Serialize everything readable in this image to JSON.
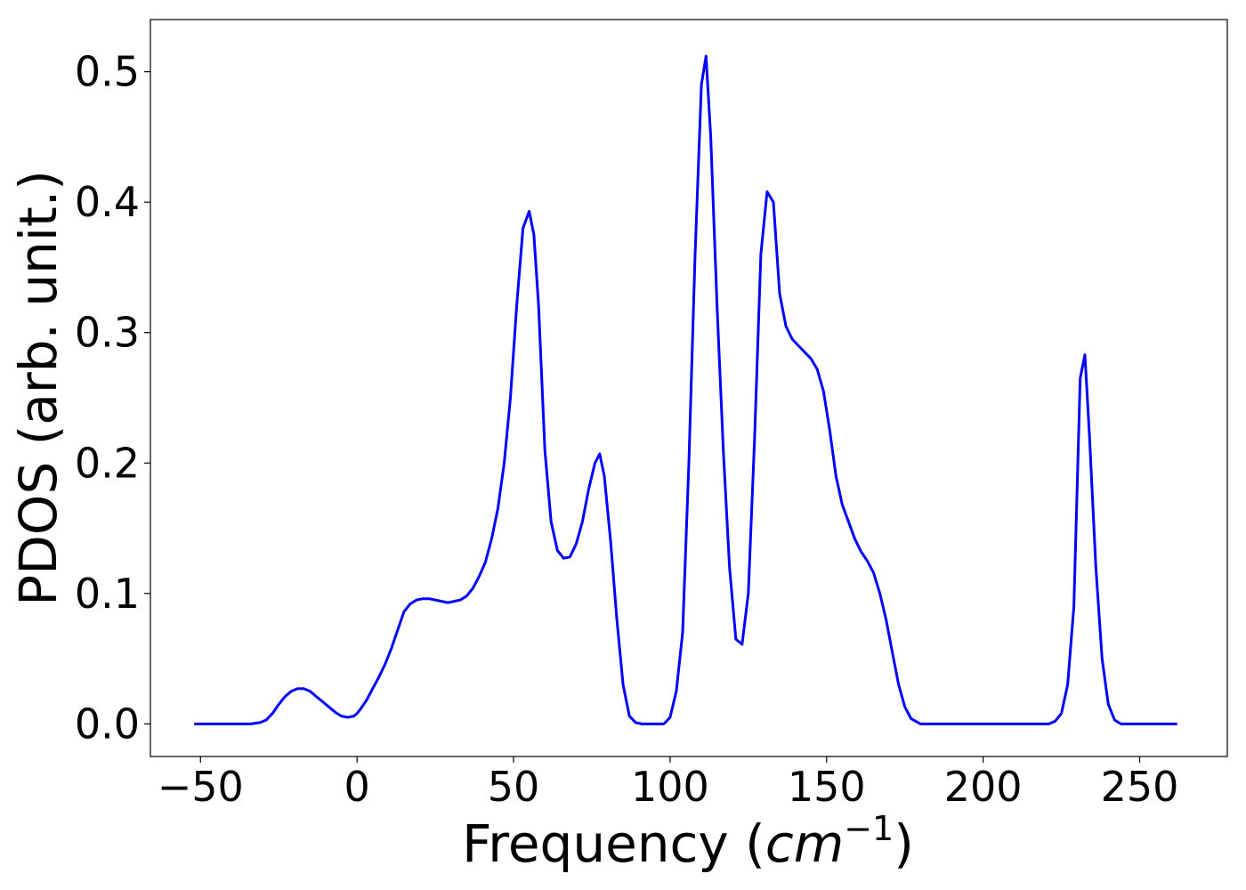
{
  "chart_data": {
    "type": "line",
    "xlabel": {
      "prefix": "Frequency (",
      "italic": "cm",
      "sup": "−1",
      "suffix": ")"
    },
    "ylabel": "PDOS (arb. unit.)",
    "xlim": [
      -66,
      278
    ],
    "ylim": [
      -0.025,
      0.54
    ],
    "xticks": [
      -50,
      0,
      50,
      100,
      150,
      200,
      250
    ],
    "xtick_labels": [
      "−50",
      "0",
      "50",
      "100",
      "150",
      "200",
      "250"
    ],
    "yticks": [
      0.0,
      0.1,
      0.2,
      0.3,
      0.4,
      0.5
    ],
    "ytick_labels": [
      "0.0",
      "0.1",
      "0.2",
      "0.3",
      "0.4",
      "0.5"
    ],
    "grid": false,
    "series": [
      {
        "color": "#0000ff",
        "x": [
          -52,
          -40,
          -34,
          -31,
          -29,
          -27,
          -25,
          -23,
          -21,
          -19,
          -17,
          -15,
          -13,
          -11,
          -9,
          -7,
          -5,
          -3,
          -1,
          0,
          1,
          3,
          5,
          7,
          9,
          11,
          13,
          15,
          17,
          19,
          21,
          23,
          25,
          27,
          29,
          31,
          33,
          35,
          37,
          39,
          41,
          43,
          45,
          47,
          49,
          51,
          53,
          55,
          56.5,
          58,
          60,
          62,
          64,
          66,
          68,
          70,
          72,
          74,
          76,
          77.5,
          79,
          81,
          83,
          85,
          87,
          89,
          91,
          95,
          98,
          100,
          102,
          104,
          106,
          108,
          110,
          111.5,
          113,
          115,
          117,
          119,
          121,
          123,
          125,
          127,
          129,
          131,
          133,
          135,
          137,
          139,
          141,
          143,
          145,
          147,
          149,
          151,
          153,
          155,
          157,
          159,
          161,
          163,
          165,
          167,
          169,
          171,
          173,
          175,
          177,
          180,
          200,
          221,
          223,
          225,
          227,
          229,
          231,
          232.5,
          234,
          236,
          238,
          240,
          242,
          244,
          250,
          262
        ],
        "y": [
          0.0,
          0.0,
          0.0,
          0.001,
          0.003,
          0.008,
          0.015,
          0.021,
          0.025,
          0.027,
          0.027,
          0.025,
          0.021,
          0.017,
          0.013,
          0.009,
          0.006,
          0.005,
          0.006,
          0.008,
          0.011,
          0.018,
          0.027,
          0.036,
          0.046,
          0.058,
          0.072,
          0.086,
          0.092,
          0.095,
          0.096,
          0.096,
          0.095,
          0.094,
          0.093,
          0.094,
          0.095,
          0.098,
          0.104,
          0.113,
          0.124,
          0.142,
          0.165,
          0.2,
          0.25,
          0.32,
          0.38,
          0.393,
          0.375,
          0.32,
          0.21,
          0.155,
          0.133,
          0.127,
          0.128,
          0.138,
          0.155,
          0.18,
          0.2,
          0.207,
          0.19,
          0.14,
          0.08,
          0.03,
          0.006,
          0.001,
          0.0,
          0.0,
          0.0,
          0.005,
          0.025,
          0.07,
          0.2,
          0.36,
          0.49,
          0.512,
          0.45,
          0.32,
          0.21,
          0.12,
          0.065,
          0.061,
          0.1,
          0.22,
          0.36,
          0.408,
          0.4,
          0.33,
          0.305,
          0.295,
          0.29,
          0.285,
          0.28,
          0.272,
          0.255,
          0.225,
          0.19,
          0.168,
          0.155,
          0.142,
          0.132,
          0.125,
          0.116,
          0.1,
          0.08,
          0.055,
          0.03,
          0.013,
          0.004,
          0.0,
          0.0,
          0.0,
          0.002,
          0.008,
          0.03,
          0.09,
          0.265,
          0.283,
          0.22,
          0.12,
          0.05,
          0.015,
          0.003,
          0.0,
          0.0,
          0.0
        ]
      }
    ]
  }
}
